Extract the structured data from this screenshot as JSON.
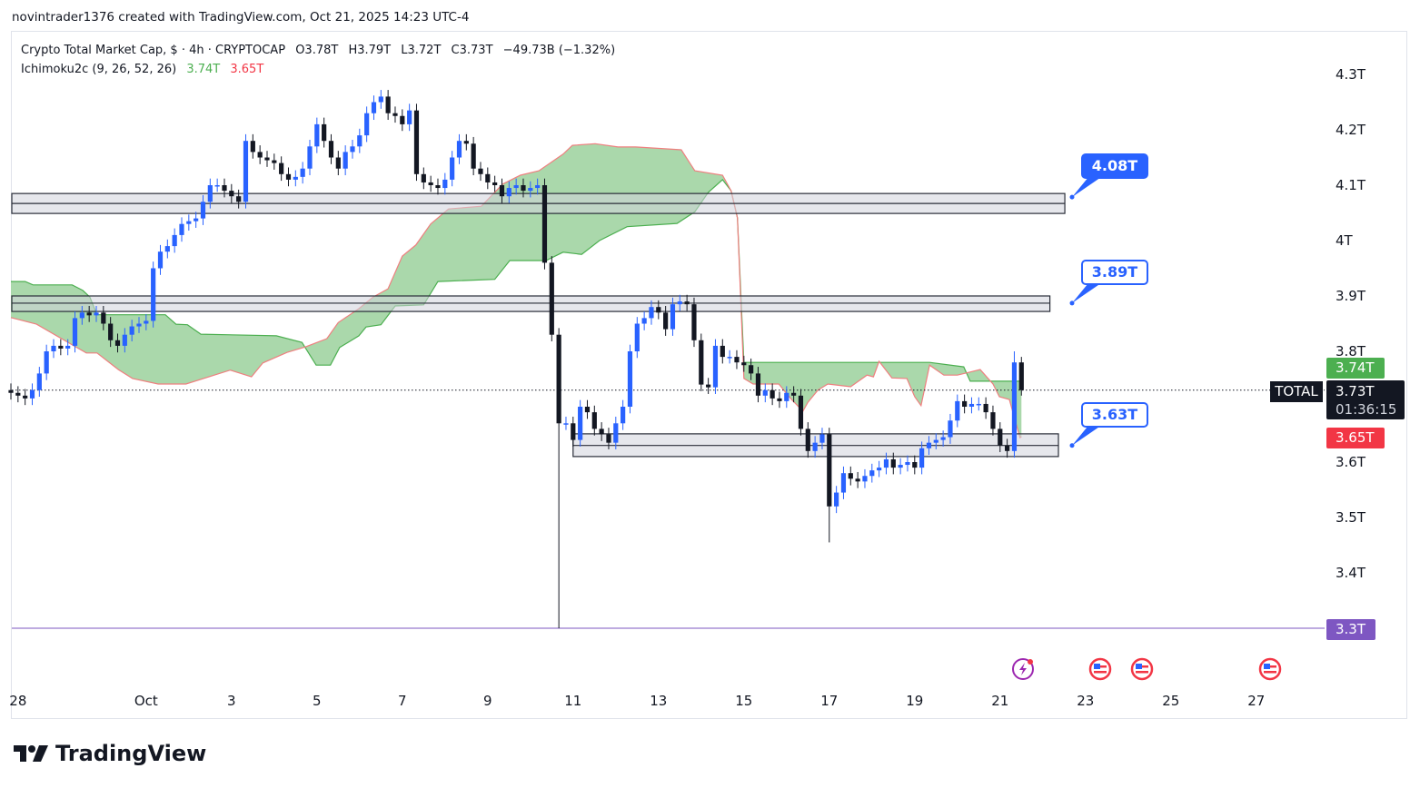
{
  "header": {
    "credit": "novintrader1376 created with TradingView.com, Oct 21, 2025 14:23 UTC-4"
  },
  "legend": {
    "symbol": "Crypto Total Market Cap, $ · 4h · CRYPTOCAP",
    "open": "O3.78T",
    "high": "H3.79T",
    "low": "L3.72T",
    "close": "C3.73T",
    "change": "−49.73B (−1.32%)",
    "indicator": "Ichimoku2c (9, 26, 52, 26)",
    "ind_a": "3.74T",
    "ind_b": "3.65T"
  },
  "price_labels": {
    "span_a": "3.74T",
    "current": "3.73T",
    "countdown": "01:36:15",
    "span_b": "3.65T",
    "symbol_tag": "TOTAL",
    "line_level": "3.3T"
  },
  "callouts": [
    {
      "text": "4.08T",
      "price": 4.08,
      "filled": true
    },
    {
      "text": "3.89T",
      "price": 3.89,
      "filled": false
    },
    {
      "text": "3.63T",
      "price": 3.63,
      "filled": false
    }
  ],
  "logo": {
    "text": "TradingView"
  },
  "events": [
    "lightning-event-icon",
    "us-flag-icon",
    "us-flag-icon",
    "us-flag-icon"
  ],
  "colors": {
    "up": "#2962ff",
    "down": "#131722",
    "cloud": "#a5d6a7",
    "span_a": "#4caf50",
    "span_b": "#ef7f7f",
    "zone": "#d1d4dc",
    "level": "#7e57c2"
  },
  "chart_data": {
    "type": "candlestick",
    "title": "Crypto Total Market Cap, $ · 4h · CRYPTOCAP",
    "interval": "4h",
    "ylim": [
      3.3,
      4.3
    ],
    "yticks": [
      {
        "v": 4.3,
        "t": "4.3T"
      },
      {
        "v": 4.2,
        "t": "4.2T"
      },
      {
        "v": 4.1,
        "t": "4.1T"
      },
      {
        "v": 4.0,
        "t": "4T"
      },
      {
        "v": 3.9,
        "t": "3.9T"
      },
      {
        "v": 3.8,
        "t": "3.8T"
      },
      {
        "v": 3.6,
        "t": "3.6T"
      },
      {
        "v": 3.5,
        "t": "3.5T"
      },
      {
        "v": 3.4,
        "t": "3.4T"
      }
    ],
    "xticks": [
      {
        "bar": 1,
        "t": "28"
      },
      {
        "bar": 19,
        "t": "Oct"
      },
      {
        "bar": 31,
        "t": "3"
      },
      {
        "bar": 43,
        "t": "5"
      },
      {
        "bar": 55,
        "t": "7"
      },
      {
        "bar": 67,
        "t": "9"
      },
      {
        "bar": 79,
        "t": "11"
      },
      {
        "bar": 91,
        "t": "13"
      },
      {
        "bar": 103,
        "t": "15"
      },
      {
        "bar": 115,
        "t": "17"
      },
      {
        "bar": 127,
        "t": "19"
      },
      {
        "bar": 139,
        "t": "21"
      },
      {
        "bar": 151,
        "t": "23"
      },
      {
        "bar": 163,
        "t": "25"
      },
      {
        "bar": 175,
        "t": "27"
      }
    ],
    "first_open": 3.73,
    "closes": [
      3.725,
      3.72,
      3.715,
      3.73,
      3.76,
      3.8,
      3.81,
      3.805,
      3.81,
      3.86,
      3.87,
      3.865,
      3.87,
      3.85,
      3.82,
      3.81,
      3.83,
      3.845,
      3.85,
      3.855,
      3.95,
      3.98,
      3.99,
      4.01,
      4.03,
      4.035,
      4.04,
      4.07,
      4.1,
      4.1,
      4.09,
      4.08,
      4.07,
      4.18,
      4.16,
      4.15,
      4.145,
      4.14,
      4.12,
      4.11,
      4.115,
      4.13,
      4.17,
      4.21,
      4.18,
      4.15,
      4.13,
      4.16,
      4.17,
      4.19,
      4.23,
      4.25,
      4.26,
      4.23,
      4.225,
      4.21,
      4.235,
      4.12,
      4.105,
      4.1,
      4.095,
      4.11,
      4.15,
      4.18,
      4.175,
      4.13,
      4.12,
      4.105,
      4.1,
      4.08,
      4.095,
      4.1,
      4.09,
      4.095,
      4.1,
      3.96,
      3.83,
      3.67,
      3.67,
      3.64,
      3.7,
      3.69,
      3.66,
      3.65,
      3.635,
      3.67,
      3.7,
      3.8,
      3.85,
      3.86,
      3.88,
      3.87,
      3.84,
      3.885,
      3.89,
      3.885,
      3.82,
      3.74,
      3.735,
      3.81,
      3.79,
      3.79,
      3.78,
      3.775,
      3.76,
      3.72,
      3.73,
      3.715,
      3.71,
      3.725,
      3.72,
      3.66,
      3.62,
      3.635,
      3.65,
      3.52,
      3.545,
      3.58,
      3.57,
      3.565,
      3.575,
      3.585,
      3.59,
      3.605,
      3.59,
      3.595,
      3.6,
      3.59,
      3.625,
      3.635,
      3.64,
      3.645,
      3.675,
      3.71,
      3.7,
      3.705,
      3.705,
      3.69,
      3.66,
      3.63,
      3.62,
      3.78,
      3.73
    ],
    "wick_pad": 0.012,
    "wick_overrides": [
      {
        "bar": 77,
        "low": 3.3
      },
      {
        "bar": 141,
        "high": 3.8
      },
      {
        "bar": 115,
        "low": 3.455
      },
      {
        "bar": 142,
        "high": 3.79,
        "low": 3.72
      }
    ],
    "ichimoku": {
      "span_a": [
        [
          0,
          3.926
        ],
        [
          2,
          3.926
        ],
        [
          3.1,
          3.92
        ],
        [
          8.6,
          3.92
        ],
        [
          10.1,
          3.91
        ],
        [
          11.1,
          3.898
        ],
        [
          12.1,
          3.866
        ],
        [
          21.7,
          3.866
        ],
        [
          23.2,
          3.849
        ],
        [
          24.8,
          3.848
        ],
        [
          26.7,
          3.831
        ],
        [
          37.3,
          3.828
        ],
        [
          40.9,
          3.816
        ],
        [
          42.9,
          3.775
        ],
        [
          44.9,
          3.775
        ],
        [
          46.2,
          3.807
        ],
        [
          48.9,
          3.828
        ],
        [
          49.9,
          3.844
        ],
        [
          52,
          3.848
        ],
        [
          54,
          3.882
        ],
        [
          58,
          3.884
        ],
        [
          60,
          3.926
        ],
        [
          68,
          3.93
        ],
        [
          70.1,
          3.964
        ],
        [
          75.2,
          3.964
        ],
        [
          77.6,
          3.979
        ],
        [
          80.2,
          3.975
        ],
        [
          82.7,
          4.0
        ],
        [
          86.6,
          4.025
        ],
        [
          93.6,
          4.031
        ],
        [
          96.1,
          4.052
        ],
        [
          98,
          4.087
        ],
        [
          100,
          4.11
        ],
        [
          101.2,
          4.09
        ],
        [
          102.1,
          4.041
        ],
        [
          103,
          3.78
        ],
        [
          129.1,
          3.78
        ],
        [
          133.9,
          3.772
        ],
        [
          134.8,
          3.746
        ],
        [
          142,
          3.746
        ]
      ],
      "span_b": [
        [
          0,
          3.861
        ],
        [
          3.6,
          3.849
        ],
        [
          10.6,
          3.797
        ],
        [
          12.1,
          3.797
        ],
        [
          15.1,
          3.767
        ],
        [
          17.1,
          3.751
        ],
        [
          20.7,
          3.741
        ],
        [
          24.6,
          3.741
        ],
        [
          30.8,
          3.766
        ],
        [
          33.8,
          3.754
        ],
        [
          35.4,
          3.779
        ],
        [
          38.8,
          3.798
        ],
        [
          41.4,
          3.808
        ],
        [
          44.4,
          3.823
        ],
        [
          46,
          3.852
        ],
        [
          48.9,
          3.877
        ],
        [
          50.9,
          3.898
        ],
        [
          53,
          3.913
        ],
        [
          55,
          3.972
        ],
        [
          56.9,
          3.992
        ],
        [
          59,
          4.03
        ],
        [
          61.5,
          4.057
        ],
        [
          66.1,
          4.062
        ],
        [
          69.1,
          4.102
        ],
        [
          71.6,
          4.118
        ],
        [
          74.2,
          4.126
        ],
        [
          77.6,
          4.156
        ],
        [
          78.9,
          4.172
        ],
        [
          82.1,
          4.175
        ],
        [
          85.3,
          4.169
        ],
        [
          87.8,
          4.169
        ],
        [
          94.2,
          4.164
        ],
        [
          96.1,
          4.126
        ],
        [
          100,
          4.118
        ],
        [
          101.2,
          4.09
        ],
        [
          102.1,
          4.041
        ],
        [
          103,
          3.751
        ],
        [
          104.3,
          3.741
        ],
        [
          107.9,
          3.741
        ],
        [
          109.7,
          3.713
        ],
        [
          111.3,
          3.692
        ],
        [
          112,
          3.708
        ],
        [
          113.4,
          3.73
        ],
        [
          114.8,
          3.741
        ],
        [
          118,
          3.736
        ],
        [
          120.3,
          3.757
        ],
        [
          121.2,
          3.754
        ],
        [
          122,
          3.782
        ],
        [
          123.8,
          3.752
        ],
        [
          125.9,
          3.751
        ],
        [
          127,
          3.718
        ],
        [
          127.9,
          3.702
        ],
        [
          129.1,
          3.775
        ],
        [
          131.1,
          3.757
        ],
        [
          133,
          3.757
        ],
        [
          134.6,
          3.762
        ],
        [
          136.2,
          3.767
        ],
        [
          138,
          3.741
        ],
        [
          138.9,
          3.718
        ],
        [
          140.3,
          3.713
        ],
        [
          141.8,
          3.644
        ],
        [
          142,
          3.646
        ]
      ]
    },
    "zones": [
      {
        "from_bar": 0,
        "to_bar": 148.1,
        "top": 4.085,
        "mid": 4.067,
        "bottom": 4.049
      },
      {
        "from_bar": 0,
        "to_bar": 146,
        "top": 3.9,
        "mid": 3.887,
        "bottom": 3.872
      },
      {
        "from_bar": 79,
        "to_bar": 147.2,
        "top": 3.651,
        "mid": 3.63,
        "bottom": 3.61
      }
    ],
    "horizontal_line": 3.3,
    "last_price": 3.73
  }
}
